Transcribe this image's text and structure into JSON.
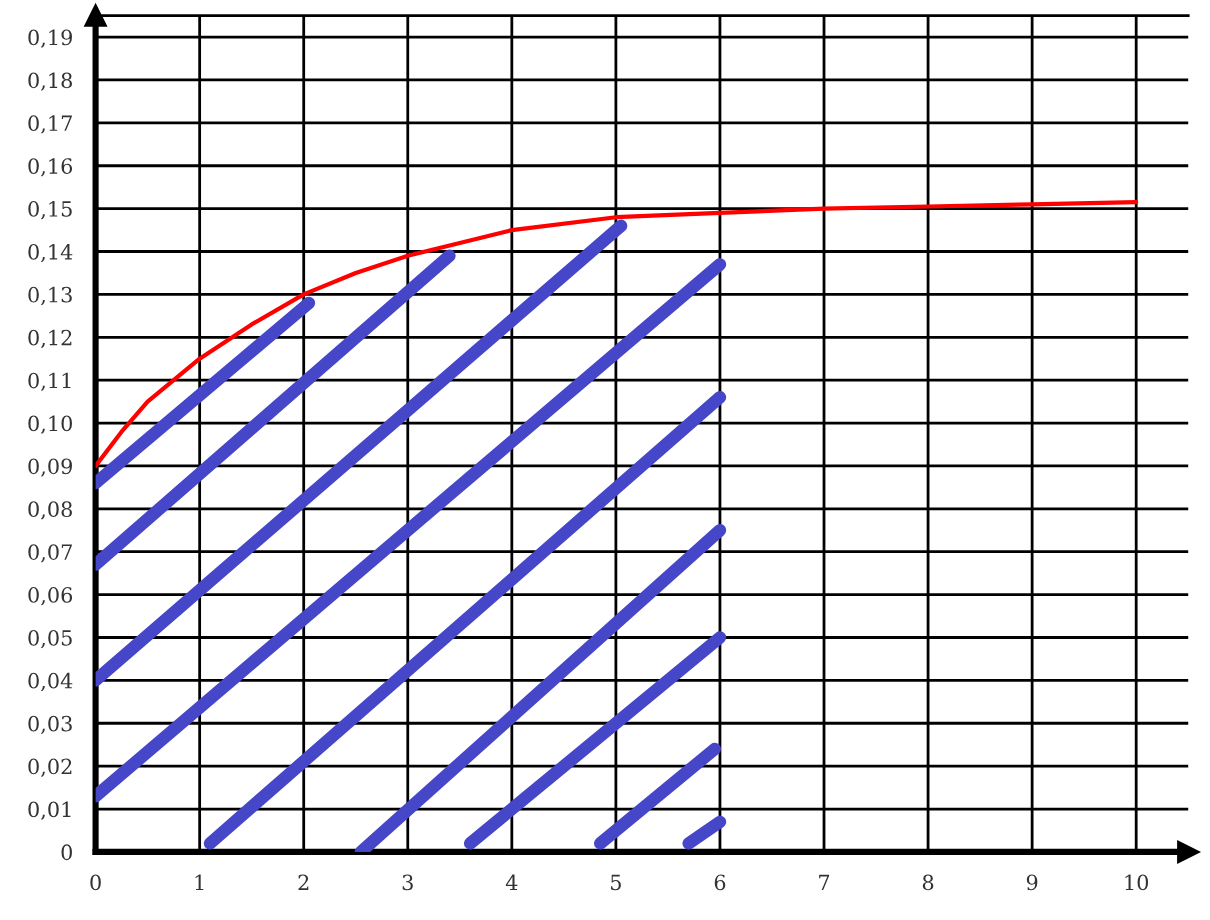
{
  "chart_data": {
    "type": "line",
    "xlim": [
      0,
      10.5
    ],
    "ylim": [
      0,
      0.195
    ],
    "xticks": [
      0,
      1,
      2,
      3,
      4,
      5,
      6,
      7,
      8,
      9,
      10
    ],
    "yticks": [
      0,
      {
        "value": 0.01,
        "label": "0,01"
      },
      {
        "value": 0.02,
        "label": "0,02"
      },
      {
        "value": 0.03,
        "label": "0,03"
      },
      {
        "value": 0.04,
        "label": "0,04"
      },
      {
        "value": 0.05,
        "label": "0,05"
      },
      {
        "value": 0.06,
        "label": "0,06"
      },
      {
        "value": 0.07,
        "label": "0,07"
      },
      {
        "value": 0.08,
        "label": "0,08"
      },
      {
        "value": 0.09,
        "label": "0,09"
      },
      {
        "value": 0.1,
        "label": "0,10"
      },
      {
        "value": 0.11,
        "label": "0,11"
      },
      {
        "value": 0.12,
        "label": "0,12"
      },
      {
        "value": 0.13,
        "label": "0,13"
      },
      {
        "value": 0.14,
        "label": "0,14"
      },
      {
        "value": 0.15,
        "label": "0,15"
      },
      {
        "value": 0.16,
        "label": "0,16"
      },
      {
        "value": 0.17,
        "label": "0,17"
      },
      {
        "value": 0.18,
        "label": "0,18"
      },
      {
        "value": 0.19,
        "label": "0,19"
      }
    ],
    "grid": true,
    "legend": false,
    "marker": "none",
    "line_style": "solid",
    "series": [
      {
        "color": "#ff0000",
        "x": [
          0,
          0.25,
          0.5,
          0.75,
          1,
          1.5,
          2,
          2.5,
          3,
          3.5,
          4,
          5,
          6,
          7,
          8,
          9,
          10
        ],
        "values": [
          0.09,
          0.098,
          0.105,
          0.11,
          0.115,
          0.123,
          0.13,
          0.135,
          0.139,
          0.142,
          0.145,
          0.148,
          0.149,
          0.15,
          0.1505,
          0.151,
          0.1515
        ]
      },
      {
        "color": "#4646c8",
        "x": [
          0,
          2.05
        ],
        "values": [
          0.086,
          0.128
        ]
      },
      {
        "color": "#4646c8",
        "x": [
          0,
          3.4
        ],
        "values": [
          0.067,
          0.139
        ]
      },
      {
        "color": "#4646c8",
        "x": [
          0,
          5.05
        ],
        "values": [
          0.04,
          0.146
        ]
      },
      {
        "color": "#4646c8",
        "x": [
          0,
          6
        ],
        "values": [
          0.013,
          0.137
        ]
      },
      {
        "color": "#4646c8",
        "x": [
          1.1,
          6
        ],
        "values": [
          0.002,
          0.106
        ]
      },
      {
        "color": "#4646c8",
        "x": [
          2.55,
          6
        ],
        "values": [
          0,
          0.075
        ]
      },
      {
        "color": "#4646c8",
        "x": [
          3.6,
          6
        ],
        "values": [
          0.002,
          0.05
        ]
      },
      {
        "color": "#4646c8",
        "x": [
          4.85,
          5.95
        ],
        "values": [
          0.002,
          0.024
        ]
      },
      {
        "color": "#4646c8",
        "x": [
          5.7,
          6
        ],
        "values": [
          0.002,
          0.007
        ]
      }
    ]
  }
}
